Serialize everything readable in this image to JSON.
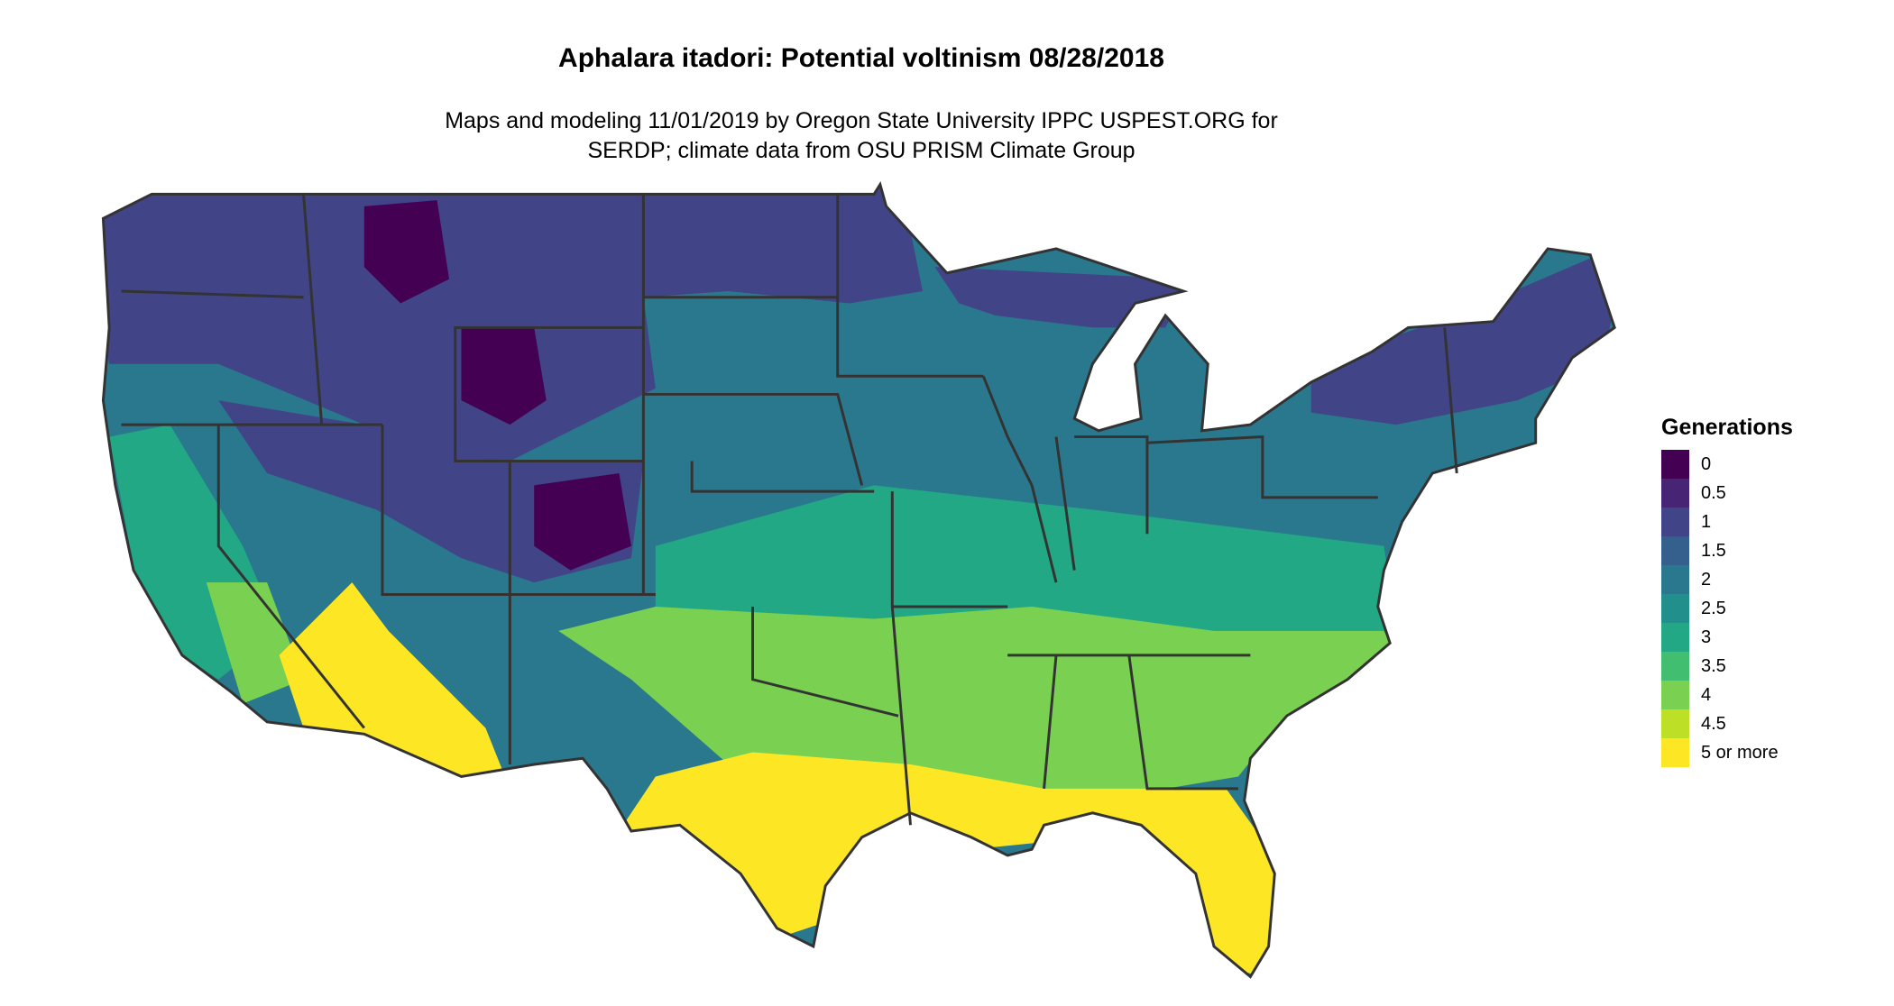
{
  "title": "Aphalara itadori: Potential voltinism 08/28/2018",
  "subtitle_line1": "Maps and modeling 11/01/2019 by Oregon State University IPPC USPEST.ORG for",
  "subtitle_line2": "SERDP; climate data from OSU PRISM Climate Group",
  "legend": {
    "title": "Generations",
    "items": [
      {
        "label": "0",
        "color": "#440154"
      },
      {
        "label": "0.5",
        "color": "#482475"
      },
      {
        "label": "1",
        "color": "#414487"
      },
      {
        "label": "1.5",
        "color": "#355f8d"
      },
      {
        "label": "2",
        "color": "#2a788e"
      },
      {
        "label": "2.5",
        "color": "#21908d"
      },
      {
        "label": "3",
        "color": "#22a884"
      },
      {
        "label": "3.5",
        "color": "#42be71"
      },
      {
        "label": "4",
        "color": "#7ad151"
      },
      {
        "label": "4.5",
        "color": "#bddf26"
      },
      {
        "label": "5 or more",
        "color": "#fde725"
      }
    ]
  },
  "map": {
    "region": "Contiguous United States",
    "border_color": "#333333"
  }
}
